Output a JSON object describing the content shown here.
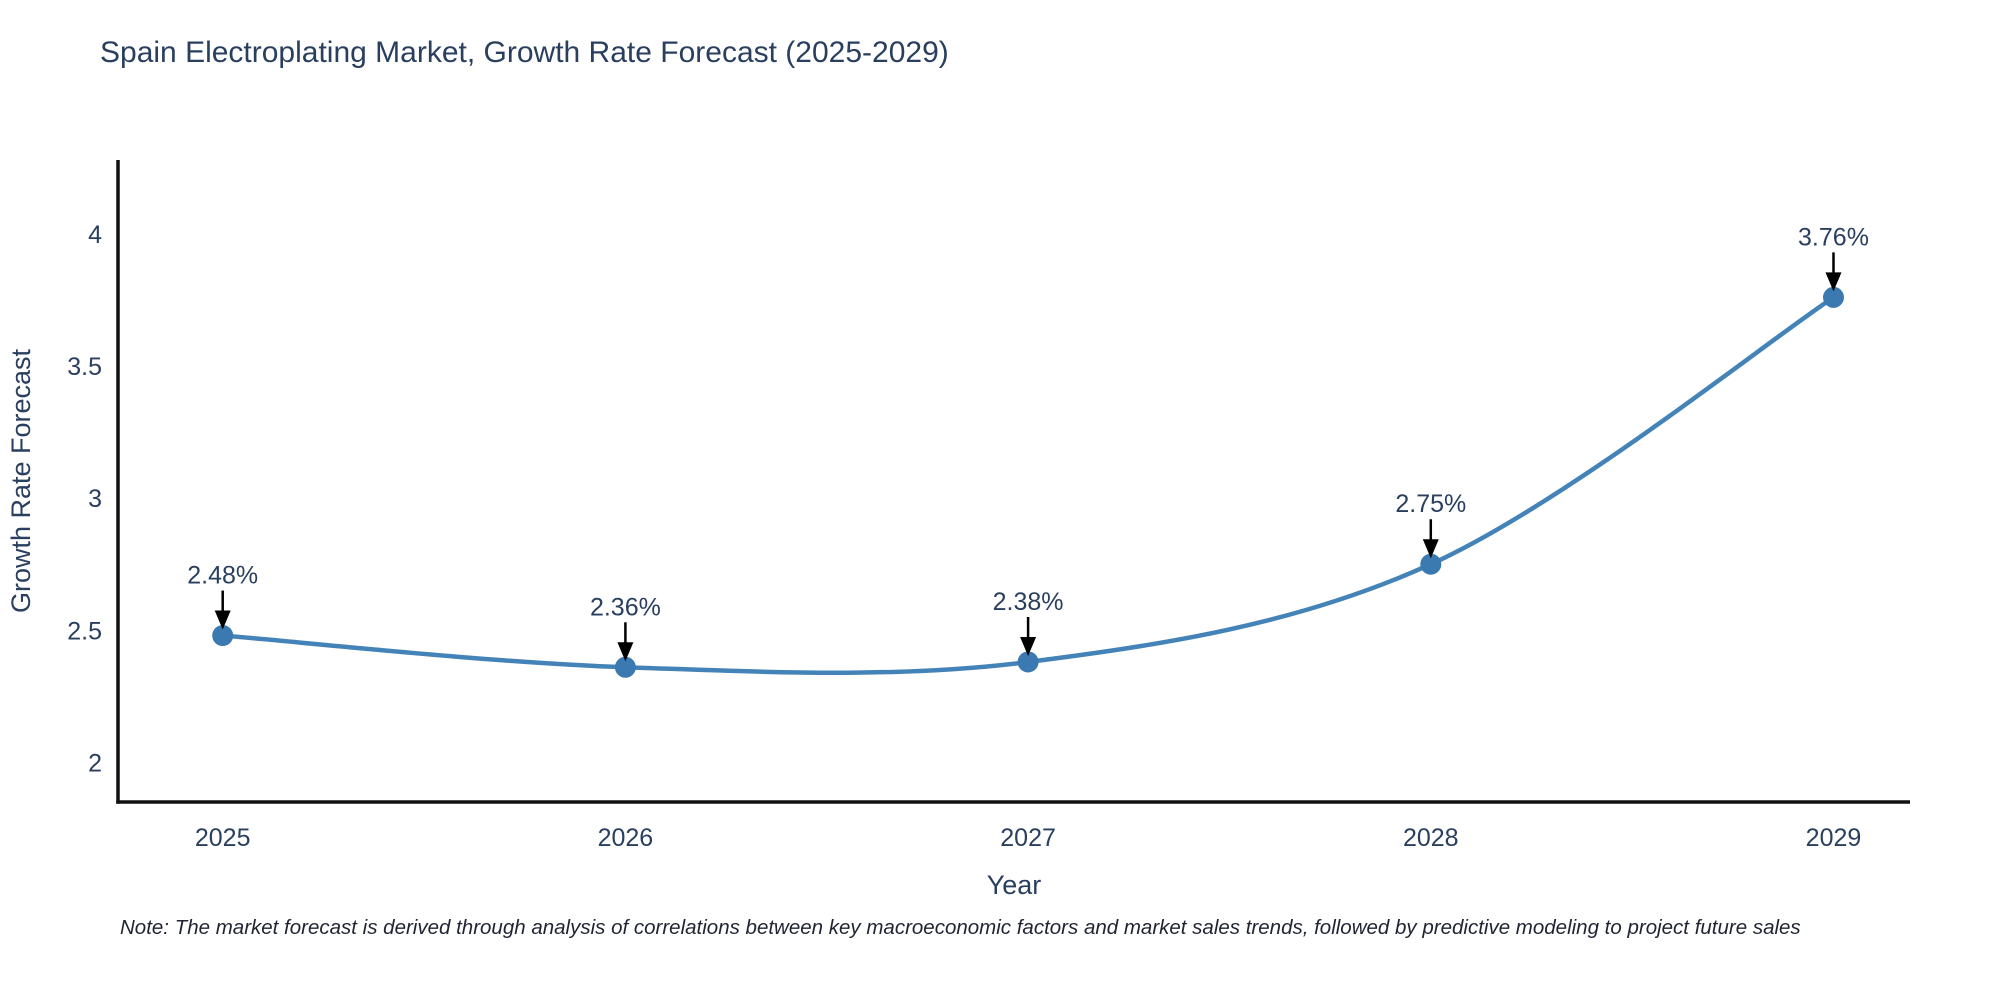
{
  "page": {
    "background": "#ffffff"
  },
  "note": "Note: The market forecast is derived through analysis of correlations between key macroeconomic factors and market sales trends, followed by predictive modeling to project future sales",
  "chart_data": {
    "type": "line",
    "title": "Spain Electroplating Market, Growth Rate Forecast (2025-2029)",
    "xlabel": "Year",
    "ylabel": "Growth Rate Forecast",
    "x": [
      2025,
      2026,
      2027,
      2028,
      2029
    ],
    "values": [
      2.48,
      2.36,
      2.38,
      2.75,
      3.76
    ],
    "point_labels": [
      "2.48%",
      "2.36%",
      "2.38%",
      "2.75%",
      "3.76%"
    ],
    "x_ticks": [
      2025,
      2026,
      2027,
      2028,
      2029
    ],
    "y_ticks": [
      2,
      2.5,
      3,
      3.5,
      4
    ],
    "xlim": [
      2024.74,
      2029.19
    ],
    "ylim": [
      1.85,
      4.28
    ],
    "grid": false,
    "legend_position": "none",
    "line_shape": "spline",
    "colors": {
      "line": "#4383b8",
      "marker": "#3a7ab0",
      "axis": "#111111",
      "text": "#2a3f5f",
      "annotation_text": "#2a3f5f",
      "annotation_arrow": "#000000",
      "background": "#ffffff"
    }
  }
}
